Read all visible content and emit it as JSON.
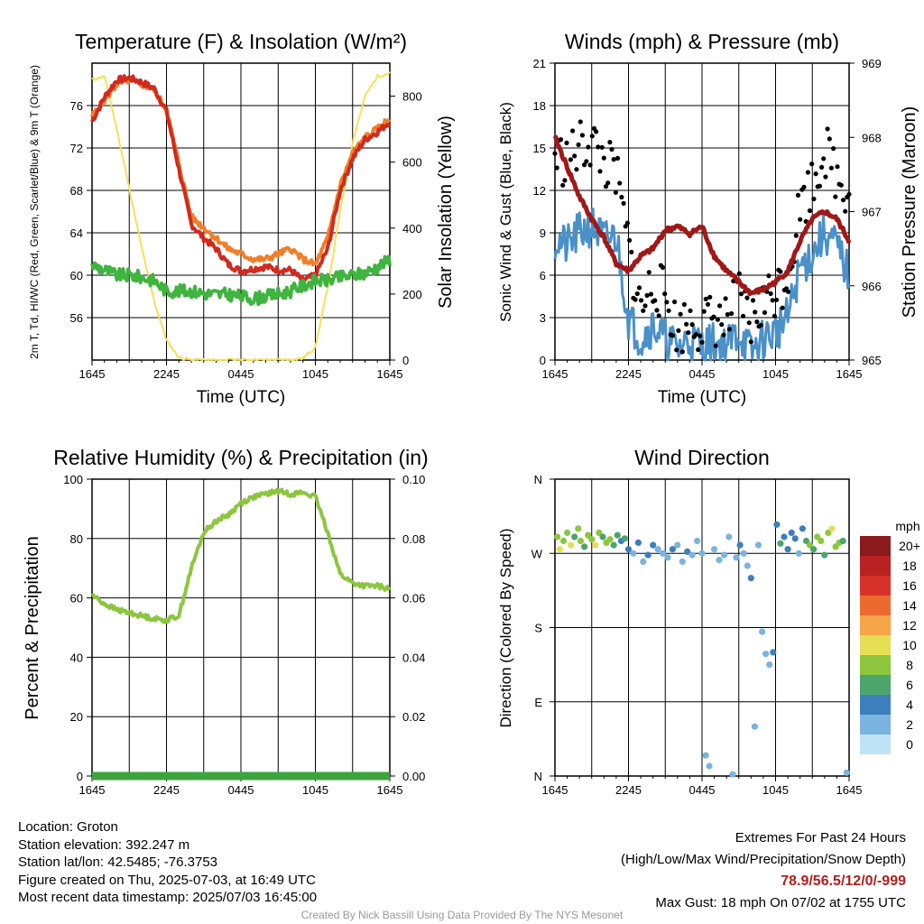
{
  "chart_data": [
    {
      "type": "line",
      "title": "Temperature (F) & Insolation (W/m²)",
      "xlabel": "Time (UTC)",
      "ylabel": "2m T, Td, HI/WC (Red, Green, Scarlet/Blue) & 9m T (Orange)",
      "ylabel_right": "Solar Insolation (Yellow)",
      "x_ticks": [
        "1645",
        "2245",
        "0445",
        "1045",
        "1645"
      ],
      "ylim": [
        52,
        80
      ],
      "yticks": [
        56,
        60,
        64,
        68,
        72,
        76
      ],
      "ylim_right": [
        0,
        900
      ],
      "yticks_right": [
        0,
        200,
        400,
        600,
        800
      ],
      "x_hours": [
        0,
        1,
        2,
        3,
        4,
        5,
        6,
        7,
        8,
        9,
        10,
        11,
        12,
        13,
        14,
        15,
        16,
        17,
        18,
        19,
        20,
        21,
        22,
        23,
        24
      ],
      "series": [
        {
          "axis": "left",
          "color": "#d12a1e",
          "values": [
            74.5,
            76.8,
            78.4,
            78.6,
            78.2,
            77.6,
            75.5,
            70.0,
            64.8,
            63.5,
            62.5,
            61.0,
            60.4,
            60.6,
            60.8,
            60.5,
            60.5,
            59.5,
            60.0,
            62.5,
            68.0,
            71.0,
            72.8,
            73.5,
            74.5
          ]
        },
        {
          "axis": "left",
          "color": "#f07f2a",
          "values": [
            75.0,
            76.5,
            78.0,
            78.4,
            78.0,
            77.5,
            75.6,
            70.5,
            65.5,
            64.5,
            63.5,
            62.5,
            62.0,
            61.5,
            61.5,
            62.0,
            62.5,
            61.5,
            61.0,
            63.5,
            68.5,
            71.5,
            73.0,
            73.8,
            74.8
          ]
        },
        {
          "axis": "left",
          "color": "#3fb43f",
          "values": [
            61.0,
            60.5,
            60.0,
            60.0,
            59.8,
            59.5,
            58.5,
            58.5,
            58.5,
            58.3,
            58.2,
            58.2,
            58.0,
            57.8,
            58.0,
            58.2,
            58.5,
            59.0,
            59.5,
            59.5,
            59.8,
            60.0,
            60.2,
            60.8,
            61.5
          ]
        },
        {
          "axis": "right",
          "color": "#f6e05a",
          "values": [
            850,
            860,
            700,
            520,
            340,
            180,
            60,
            8,
            0,
            0,
            0,
            0,
            0,
            0,
            0,
            0,
            0,
            5,
            40,
            220,
            450,
            660,
            800,
            860,
            870
          ]
        }
      ]
    },
    {
      "type": "line",
      "title": "Winds (mph) & Pressure (mb)",
      "xlabel": "Time (UTC)",
      "ylabel": "Sonic Wind & Gust (Blue, Black)",
      "ylabel_right": "Station Pressure (Maroon)",
      "x_ticks": [
        "1645",
        "2245",
        "0445",
        "1045",
        "1645"
      ],
      "ylim": [
        0,
        21
      ],
      "yticks": [
        0,
        3,
        6,
        9,
        12,
        15,
        18,
        21
      ],
      "ylim_right": [
        965,
        969
      ],
      "yticks_right": [
        965,
        966,
        967,
        968,
        969
      ],
      "x_hours": [
        0,
        1,
        2,
        3,
        4,
        5,
        6,
        7,
        8,
        9,
        10,
        11,
        12,
        13,
        14,
        15,
        16,
        17,
        18,
        19,
        20,
        21,
        22,
        23,
        24
      ],
      "series": [
        {
          "axis": "left",
          "color": "#4a90c9",
          "name_key": "wind",
          "values": [
            8.5,
            8.0,
            9.0,
            9.5,
            8.5,
            8.8,
            3.0,
            1.5,
            2.5,
            1.5,
            0.8,
            1.5,
            1.0,
            1.2,
            1.0,
            2.0,
            0.5,
            1.5,
            2.0,
            3.0,
            6.5,
            7.5,
            9.0,
            8.0,
            6.0
          ]
        },
        {
          "axis": "left",
          "color": "#000000",
          "type": "scatter",
          "name_key": "gust",
          "values": [
            14.5,
            14.0,
            15.0,
            15.5,
            14.0,
            13.0,
            8.0,
            3.5,
            5.5,
            4.5,
            2.0,
            3.0,
            2.5,
            3.0,
            2.5,
            4.5,
            2.5,
            4.0,
            5.0,
            6.0,
            11.0,
            12.5,
            15.0,
            13.0,
            12.0
          ]
        },
        {
          "axis": "right",
          "color": "#a01818",
          "name_key": "pressure",
          "values": [
            968.0,
            967.6,
            967.2,
            966.9,
            966.65,
            966.3,
            966.2,
            966.4,
            966.5,
            966.75,
            966.8,
            966.7,
            966.8,
            966.4,
            966.2,
            966.05,
            965.9,
            965.95,
            966.05,
            966.2,
            966.6,
            966.9,
            967.0,
            966.9,
            966.6
          ]
        }
      ]
    },
    {
      "type": "line",
      "title": "Relative Humidity (%) & Precipitation (in)",
      "ylabel": "Percent & Precipitation",
      "x_ticks": [
        "1645",
        "2245",
        "0445",
        "1045",
        "1645"
      ],
      "ylim": [
        0,
        100
      ],
      "yticks": [
        0,
        20,
        40,
        60,
        80,
        100
      ],
      "ylim_right": [
        0,
        0.1
      ],
      "yticks_right_labels": [
        "0.00",
        "0.02",
        "0.04",
        "0.06",
        "0.08",
        "0.10"
      ],
      "x_hours": [
        0,
        1,
        2,
        3,
        4,
        5,
        6,
        7,
        8,
        9,
        10,
        11,
        12,
        13,
        14,
        15,
        16,
        17,
        18,
        19,
        20,
        21,
        22,
        23,
        24
      ],
      "series": [
        {
          "axis": "left",
          "color": "#8cc63f",
          "values": [
            61,
            58,
            56,
            55,
            54,
            53,
            52.5,
            54,
            70,
            82,
            86,
            88,
            92,
            94,
            95,
            96,
            95,
            95.5,
            94,
            82,
            68,
            65,
            64,
            64,
            63
          ]
        },
        {
          "axis": "right",
          "color": "#3da33d",
          "values": [
            0,
            0,
            0,
            0,
            0,
            0,
            0,
            0,
            0,
            0,
            0,
            0,
            0,
            0,
            0,
            0,
            0,
            0,
            0,
            0,
            0,
            0,
            0,
            0,
            0
          ]
        }
      ]
    },
    {
      "type": "scatter",
      "title": "Wind Direction",
      "ylabel": "Direction (Colored By Speed)",
      "x_ticks": [
        "1645",
        "2245",
        "0445",
        "1045",
        "1645"
      ],
      "y_tick_labels": [
        "N",
        "E",
        "S",
        "W",
        "N"
      ],
      "ylim_degrees": [
        0,
        360
      ],
      "colorbar_title": "mph",
      "colorbar_labels": [
        "20+",
        "18",
        "16",
        "14",
        "12",
        "10",
        "8",
        "6",
        "4",
        "2",
        "0"
      ],
      "colorbar_colors": [
        "#8b1a1a",
        "#b82222",
        "#d63228",
        "#ec6a30",
        "#f6a548",
        "#e6df55",
        "#8cc63f",
        "#4aa66a",
        "#3d7fbd",
        "#7ab4e0",
        "#bfe3f5"
      ],
      "points_hours": [
        0.2,
        0.4,
        0.7,
        1.0,
        1.3,
        1.6,
        1.9,
        2.1,
        2.4,
        2.7,
        3.0,
        3.3,
        3.6,
        3.9,
        4.2,
        4.5,
        4.8,
        5.1,
        5.4,
        5.7,
        6.0,
        6.4,
        6.8,
        7.2,
        7.6,
        8.0,
        8.4,
        8.8,
        9.2,
        9.6,
        10.0,
        10.4,
        10.8,
        11.2,
        11.6,
        12.0,
        12.3,
        12.6,
        13.0,
        13.4,
        13.8,
        14.2,
        14.5,
        14.8,
        15.1,
        15.4,
        15.7,
        16.0,
        16.3,
        16.6,
        16.9,
        17.2,
        17.5,
        17.8,
        18.1,
        18.4,
        18.7,
        19.0,
        19.3,
        19.6,
        19.9,
        20.2,
        20.5,
        20.8,
        21.1,
        21.4,
        21.7,
        22.0,
        22.3,
        22.6,
        22.9,
        23.2,
        23.5,
        23.8
      ],
      "points_dir": [
        290,
        275,
        285,
        295,
        280,
        290,
        300,
        285,
        278,
        292,
        287,
        280,
        295,
        290,
        283,
        287,
        280,
        292,
        285,
        288,
        275,
        270,
        283,
        260,
        268,
        280,
        275,
        270,
        265,
        275,
        280,
        260,
        272,
        268,
        285,
        270,
        25,
        12,
        275,
        262,
        268,
        290,
        2,
        265,
        280,
        270,
        255,
        240,
        60,
        280,
        175,
        148,
        135,
        150,
        305,
        282,
        290,
        275,
        295,
        288,
        270,
        300,
        285,
        280,
        275,
        290,
        285,
        268,
        295,
        300,
        278,
        283,
        285,
        4
      ],
      "points_speed": [
        8,
        10,
        7,
        8,
        9,
        6,
        7,
        8,
        6,
        7,
        8,
        9,
        7,
        6,
        8,
        7,
        5,
        6,
        4,
        5,
        3,
        2,
        3,
        2,
        3,
        4,
        2,
        1,
        2,
        3,
        1,
        2,
        3,
        1,
        2,
        1,
        1,
        1,
        2,
        1,
        2,
        1,
        1,
        2,
        3,
        1,
        2,
        3,
        1,
        2,
        1,
        2,
        1,
        3,
        4,
        5,
        3,
        4,
        4,
        3,
        2,
        3,
        5,
        7,
        6,
        7,
        8,
        6,
        7,
        9,
        8,
        7,
        6,
        2
      ]
    }
  ],
  "footer": {
    "location": "Location: Groton",
    "elevation": "Station elevation: 392.247 m",
    "latlon": "Station lat/lon: 42.5485; -76.3753",
    "created": "Figure created on Thu, 2025-07-03, at 16:49 UTC",
    "recent": "Most recent data timestamp: 2025/07/03 16:45:00",
    "extremes_title": "Extremes For Past 24 Hours",
    "extremes_legend": "(High/Low/Max Wind/Precipitation/Snow Depth)",
    "extremes_values": "78.9/56.5/12/0/-999",
    "max_gust": "Max Gust: 18 mph On 07/02 at 1755 UTC",
    "credit": "Created By Nick Bassill Using Data Provided By The NYS Mesonet"
  },
  "colors": {
    "title": "#000000",
    "grid": "#000000",
    "extremes": "#b21e1e",
    "credit": "#999999"
  }
}
